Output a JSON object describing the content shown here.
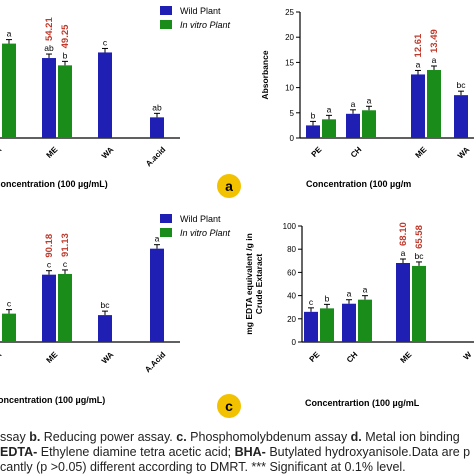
{
  "colors": {
    "wild": "#1f1fb4",
    "invitro": "#1a8c1a",
    "highlight": "#c0392b",
    "badge": "#f2c200"
  },
  "chart_data": [
    {
      "id": "a-left",
      "type": "bar",
      "categories": [
        "A",
        "ME",
        "WA",
        "A.acid"
      ],
      "series": [
        {
          "name": "Wild Plant",
          "values": [
            null,
            54.21,
            58,
            14
          ]
        },
        {
          "name": "In vitro Plant",
          "values": [
            64,
            49.25,
            null,
            null
          ]
        }
      ],
      "ylim": [
        0,
        80
      ],
      "bar_labels": [
        [
          "",
          "ab",
          "c",
          "ab"
        ],
        [
          "a",
          "b",
          "",
          ""
        ]
      ],
      "value_labels": [
        [
          "",
          "54.21",
          "",
          ""
        ],
        [
          "",
          "49.25",
          "",
          ""
        ]
      ],
      "legend": [
        "Wild Plant",
        "In vitro Plant"
      ],
      "xlabel": "Concentration (100 µg/mL)"
    },
    {
      "id": "b",
      "type": "bar",
      "categories": [
        "PE",
        "CH",
        "ME",
        "WA"
      ],
      "series": [
        {
          "name": "",
          "values": [
            2.5,
            4.8,
            12.61,
            8.5
          ]
        },
        {
          "name": "",
          "values": [
            3.7,
            5.5,
            13.49,
            null
          ]
        }
      ],
      "ylim": [
        0,
        25
      ],
      "yticks": [
        0,
        5,
        10,
        15,
        20,
        25
      ],
      "bar_labels": [
        [
          "b",
          "a",
          "a",
          "bc"
        ],
        [
          "a",
          "a",
          "a",
          ""
        ]
      ],
      "value_labels": [
        [
          "",
          "",
          "12.61",
          ""
        ],
        [
          "",
          "",
          "13.49",
          ""
        ]
      ],
      "ylabel": "Absorbance",
      "xlabel": "Concentration (100 µg/m"
    },
    {
      "id": "c-left",
      "type": "bar",
      "categories": [
        "A",
        "ME",
        "WA",
        "A.Acid"
      ],
      "series": [
        {
          "name": "Wild Plant",
          "values": [
            null,
            90.18,
            36,
            125
          ]
        },
        {
          "name": "In vitro Plant",
          "values": [
            38,
            91.13,
            null,
            null
          ]
        }
      ],
      "ylim": [
        0,
        150
      ],
      "bar_labels": [
        [
          "",
          "c",
          "bc",
          "a"
        ],
        [
          "c",
          "c",
          "",
          ""
        ]
      ],
      "value_labels": [
        [
          "",
          "90.18",
          "",
          ""
        ],
        [
          "",
          "91.13",
          "",
          ""
        ]
      ],
      "legend": [
        "Wild Plant",
        "In vitro Plant"
      ],
      "xlabel": "oncentration (100 µg/mL)"
    },
    {
      "id": "d",
      "type": "bar",
      "categories": [
        "PE",
        "CH",
        "ME",
        "W"
      ],
      "series": [
        {
          "name": "",
          "values": [
            26,
            33,
            68.1,
            null
          ]
        },
        {
          "name": "",
          "values": [
            29,
            36.5,
            65.58,
            null
          ]
        }
      ],
      "ylim": [
        0,
        100
      ],
      "yticks": [
        0,
        20,
        40,
        60,
        80,
        100
      ],
      "bar_labels": [
        [
          "c",
          "a",
          "a",
          ""
        ],
        [
          "b",
          "a",
          "bc",
          ""
        ]
      ],
      "value_labels": [
        [
          "",
          "",
          "68.10",
          ""
        ],
        [
          "",
          "",
          "65.58",
          ""
        ]
      ],
      "ylabel": "mg EDTA equivalent /g in Crude Extaract",
      "xlabel": "Concentrartion (100 µg/mL"
    }
  ],
  "panel_badges": {
    "a": "a",
    "c": "c"
  },
  "caption": {
    "line1_pre": "ssay ",
    "b_letter": "b.",
    "b_text": " Reducing power assay. ",
    "c_letter": "c.",
    "c_text": " Phosphomolybdenum assay ",
    "d_letter": "d.",
    "d_text": " Metal ion binding",
    "line2_edta": "EDTA-",
    "line2_edta_text": " Ethylene diamine tetra acetic acid; ",
    "line2_bha": "BHA-",
    "line2_bha_text": " Butylated hydroxyanisole.Data are p",
    "line3": "cantly (p >0.05) different according to DMRT. *** Significant at 0.1% level."
  }
}
